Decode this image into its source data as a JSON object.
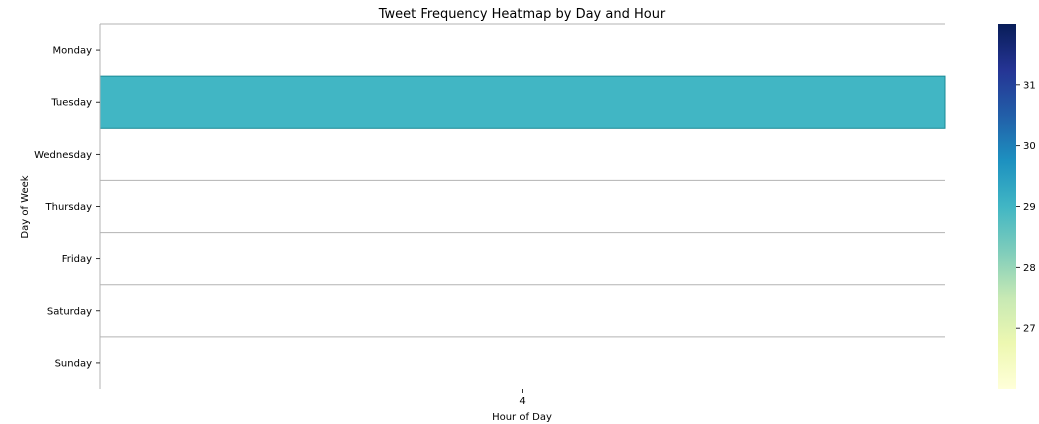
{
  "chart_data": {
    "type": "heatmap",
    "title": "Tweet Frequency Heatmap by Day and Hour",
    "xlabel": "Hour of Day",
    "ylabel": "Day of Week",
    "x_categories": [
      "4"
    ],
    "y_categories": [
      "Monday",
      "Tuesday",
      "Wednesday",
      "Thursday",
      "Friday",
      "Saturday",
      "Sunday"
    ],
    "values": [
      [
        null
      ],
      [
        29
      ],
      [
        null
      ],
      [
        null
      ],
      [
        null
      ],
      [
        null
      ],
      [
        null
      ]
    ],
    "colorbar": {
      "range": [
        26,
        32
      ],
      "ticks": [
        27,
        28,
        29,
        30,
        31
      ],
      "colormap": "YlGnBu",
      "stops": [
        "#ffffd9",
        "#edf8b1",
        "#c7e9b4",
        "#7fcdbb",
        "#41b6c4",
        "#1d91c0",
        "#225ea8",
        "#253494",
        "#081d58"
      ]
    },
    "cell_border_color": "#1a8a96",
    "separator_color": "#b3b3b3",
    "grid": false
  }
}
